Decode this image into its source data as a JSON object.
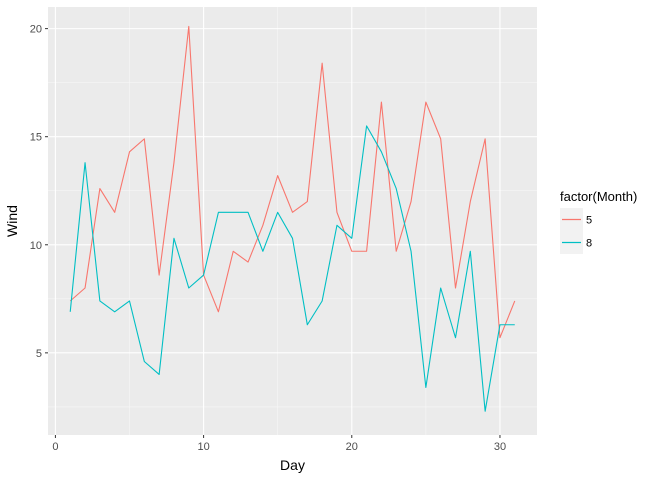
{
  "chart_data": {
    "type": "line",
    "title": "",
    "xlabel": "Day",
    "ylabel": "Wind",
    "xlim": [
      -0.5,
      32.5
    ],
    "ylim": [
      1.2,
      21.0
    ],
    "x_ticks": [
      0,
      10,
      20,
      30
    ],
    "y_ticks": [
      5,
      10,
      15,
      20
    ],
    "grid": true,
    "legend": {
      "title": "factor(Month)",
      "position": "right"
    },
    "series": [
      {
        "name": "5",
        "color": "#F8766D",
        "x": [
          1,
          2,
          3,
          4,
          5,
          6,
          7,
          8,
          9,
          10,
          11,
          12,
          13,
          14,
          15,
          16,
          17,
          18,
          19,
          20,
          21,
          22,
          23,
          24,
          25,
          26,
          27,
          28,
          29,
          30,
          31
        ],
        "values": [
          7.4,
          8.0,
          12.6,
          11.5,
          14.3,
          14.9,
          8.6,
          13.8,
          20.1,
          8.6,
          6.9,
          9.7,
          9.2,
          10.9,
          13.2,
          11.5,
          12.0,
          18.4,
          11.5,
          9.7,
          9.7,
          16.6,
          9.7,
          12.0,
          16.6,
          14.9,
          8.0,
          12.0,
          14.9,
          5.7,
          7.4
        ]
      },
      {
        "name": "8",
        "color": "#00BFC4",
        "x": [
          1,
          2,
          3,
          4,
          5,
          6,
          7,
          8,
          9,
          10,
          11,
          12,
          13,
          14,
          15,
          16,
          17,
          18,
          19,
          20,
          21,
          22,
          23,
          24,
          25,
          26,
          27,
          28,
          29,
          30,
          31
        ],
        "values": [
          6.9,
          13.8,
          7.4,
          6.9,
          7.4,
          4.6,
          4.0,
          10.3,
          8.0,
          8.6,
          11.5,
          11.5,
          11.5,
          9.7,
          11.5,
          10.3,
          6.3,
          7.4,
          10.9,
          10.3,
          15.5,
          14.3,
          12.6,
          9.7,
          3.4,
          8.0,
          5.7,
          9.7,
          2.3,
          6.3,
          6.3
        ]
      }
    ]
  }
}
